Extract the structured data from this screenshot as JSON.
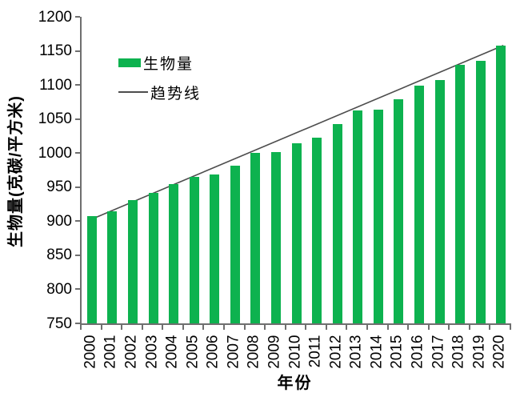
{
  "chart_data": {
    "type": "bar",
    "title": "",
    "xlabel": "年份",
    "ylabel": "生物量(克碳/平方米)",
    "ylim": [
      750,
      1200
    ],
    "yticks": [
      750,
      800,
      850,
      900,
      950,
      1000,
      1050,
      1100,
      1150,
      1200
    ],
    "categories": [
      "2000",
      "2001",
      "2002",
      "2003",
      "2004",
      "2005",
      "2006",
      "2007",
      "2008",
      "2009",
      "2010",
      "2011",
      "2012",
      "2013",
      "2014",
      "2015",
      "2016",
      "2017",
      "2018",
      "2019",
      "2020"
    ],
    "series": [
      {
        "name": "生物量",
        "type": "bar",
        "color": "#0db24f",
        "values": [
          908,
          915,
          931,
          942,
          955,
          965,
          969,
          982,
          1000,
          1002,
          1014,
          1023,
          1043,
          1062,
          1064,
          1079,
          1099,
          1107,
          1130,
          1135,
          1158
        ]
      },
      {
        "name": "趋势线",
        "type": "line",
        "color": "#4d4d4d",
        "start_value": 903,
        "end_value": 1158
      }
    ],
    "legend": {
      "position": "upper-left",
      "entries": [
        "生物量",
        "趋势线"
      ]
    },
    "grid": false
  }
}
